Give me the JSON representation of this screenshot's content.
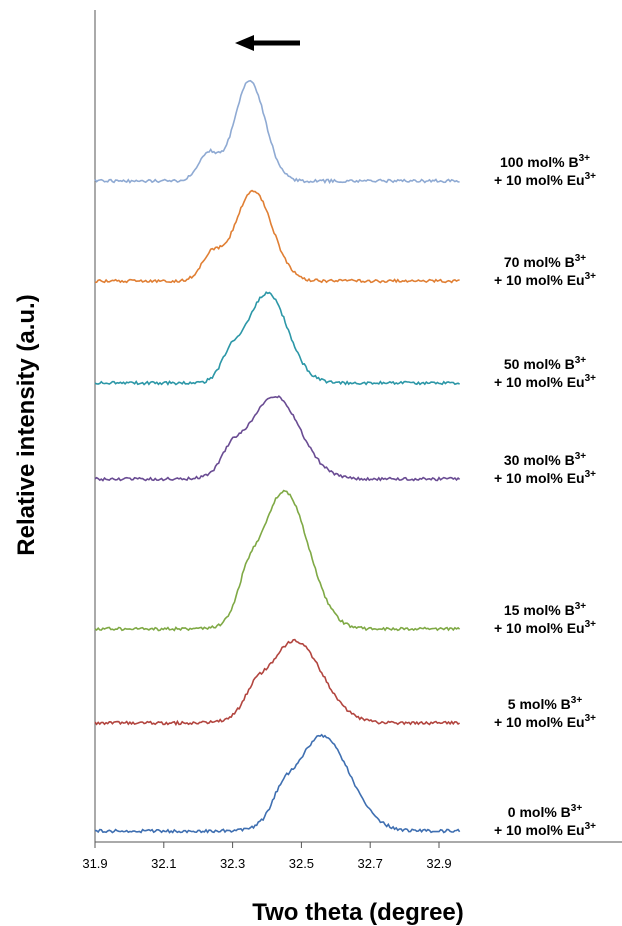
{
  "chart_data": {
    "type": "line",
    "xlabel": "Two theta (degree)",
    "ylabel": "Relative intensity (a.u.)",
    "xlim": [
      31.9,
      33.0
    ],
    "x_ticks": [
      "31.9",
      "32.1",
      "32.3",
      "32.5",
      "32.7",
      "32.9"
    ],
    "y_ticks_shown": false,
    "annotation": "arrow pointing left (peak shift toward lower angle)",
    "series": [
      {
        "label_line1": "100 mol% B",
        "label_line1_sup": "3+",
        "label_line2": "+ 10 mol% Eu",
        "label_line2_sup": "3+",
        "color": "#8faad3",
        "peak": 32.35,
        "height": 100,
        "width": 0.045,
        "shoulder": 32.23,
        "baseline_offset": 650
      },
      {
        "label_line1": "70 mol% B",
        "label_line1_sup": "3+",
        "label_line2": "+ 10 mol% Eu",
        "label_line2_sup": "3+",
        "color": "#e07f34",
        "peak": 32.36,
        "height": 90,
        "width": 0.055,
        "shoulder": 32.24,
        "baseline_offset": 550
      },
      {
        "label_line1": "50 mol% B",
        "label_line1_sup": "3+",
        "label_line2": "+ 10 mol% Eu",
        "label_line2_sup": "3+",
        "color": "#2c97a7",
        "peak": 32.4,
        "height": 90,
        "width": 0.06,
        "shoulder": 32.3,
        "baseline_offset": 448
      },
      {
        "label_line1": "30 mol% B",
        "label_line1_sup": "3+",
        "label_line2": "+ 10 mol% Eu",
        "label_line2_sup": "3+",
        "color": "#6a4c93",
        "peak": 32.42,
        "height": 83,
        "width": 0.075,
        "shoulder": 32.3,
        "baseline_offset": 352
      },
      {
        "label_line1": "15 mol% B",
        "label_line1_sup": "3+",
        "label_line2": "+ 10 mol% Eu",
        "label_line2_sup": "3+",
        "color": "#7fa945",
        "peak": 32.45,
        "height": 138,
        "width": 0.07,
        "shoulder": 32.35,
        "baseline_offset": 202
      },
      {
        "label_line1": "5 mol% B",
        "label_line1_sup": "3+",
        "label_line2": "+ 10 mol% Eu",
        "label_line2_sup": "3+",
        "color": "#b2453f",
        "peak": 32.48,
        "height": 82,
        "width": 0.08,
        "shoulder": 32.37,
        "baseline_offset": 108
      },
      {
        "label_line1": "0 mol% B",
        "label_line1_sup": "3+",
        "label_line2": "+ 10 mol% Eu",
        "label_line2_sup": "3+",
        "color": "#3f6fb1",
        "peak": 32.56,
        "height": 95,
        "width": 0.08,
        "shoulder": 32.45,
        "baseline_offset": 0
      }
    ]
  }
}
